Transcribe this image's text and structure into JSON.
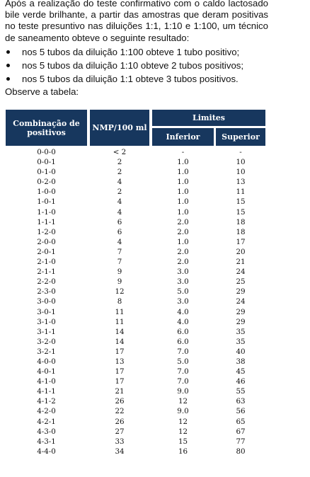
{
  "intro": {
    "paragraph": "Após a realização do teste confirmativo com o caldo lactosado bile verde brilhante, a partir das amostras que deram positivas no teste presuntivo nas diluições 1:1, 1:10 e 1:100, um técnico de saneamento obteve o seguinte resultado:",
    "bullets": [
      "nos 5 tubos da diluição 1:100 obteve 1 tubo positivo;",
      "nos 5 tubos da diluição 1:10 obteve 2 tubos positivos;",
      "nos 5 tubos da diluição 1:1 obteve 3 tubos positivos."
    ],
    "observe": "Observe a tabela:"
  },
  "table": {
    "header_color": "#17375e",
    "headers": {
      "combination": "Combinação de positivos",
      "nmp": "NMP/100 ml",
      "limits": "Limites",
      "lower": "Inferior",
      "upper": "Superior"
    },
    "rows": [
      [
        "0-0-0",
        "< 2",
        "-",
        "-"
      ],
      [
        "0-0-1",
        "2",
        "1.0",
        "10"
      ],
      [
        "0-1-0",
        "2",
        "1.0",
        "10"
      ],
      [
        "0-2-0",
        "4",
        "1.0",
        "13"
      ],
      [
        "1-0-0",
        "2",
        "1.0",
        "11"
      ],
      [
        "1-0-1",
        "4",
        "1.0",
        "15"
      ],
      [
        "1-1-0",
        "4",
        "1.0",
        "15"
      ],
      [
        "1-1-1",
        "6",
        "2.0",
        "18"
      ],
      [
        "1-2-0",
        "6",
        "2.0",
        "18"
      ],
      [
        "2-0-0",
        "4",
        "1.0",
        "17"
      ],
      [
        "2-0-1",
        "7",
        "2.0",
        "20"
      ],
      [
        "2-1-0",
        "7",
        "2.0",
        "21"
      ],
      [
        "2-1-1",
        "9",
        "3.0",
        "24"
      ],
      [
        "2-2-0",
        "9",
        "3.0",
        "25"
      ],
      [
        "2-3-0",
        "12",
        "5.0",
        "29"
      ],
      [
        "3-0-0",
        "8",
        "3.0",
        "24"
      ],
      [
        "3-0-1",
        "11",
        "4.0",
        "29"
      ],
      [
        "3-1-0",
        "11",
        "4.0",
        "29"
      ],
      [
        "3-1-1",
        "14",
        "6.0",
        "35"
      ],
      [
        "3-2-0",
        "14",
        "6.0",
        "35"
      ],
      [
        "3-2-1",
        "17",
        "7.0",
        "40"
      ],
      [
        "4-0-0",
        "13",
        "5.0",
        "38"
      ],
      [
        "4-0-1",
        "17",
        "7.0",
        "45"
      ],
      [
        "4-1-0",
        "17",
        "7.0",
        "46"
      ],
      [
        "4-1-1",
        "21",
        "9.0",
        "55"
      ],
      [
        "4-1-2",
        "26",
        "12",
        "63"
      ],
      [
        "4-2-0",
        "22",
        "9.0",
        "56"
      ],
      [
        "4-2-1",
        "26",
        "12",
        "65"
      ],
      [
        "4-3-0",
        "27",
        "12",
        "67"
      ],
      [
        "4-3-1",
        "33",
        "15",
        "77"
      ],
      [
        "4-4-0",
        "34",
        "16",
        "80"
      ]
    ]
  }
}
